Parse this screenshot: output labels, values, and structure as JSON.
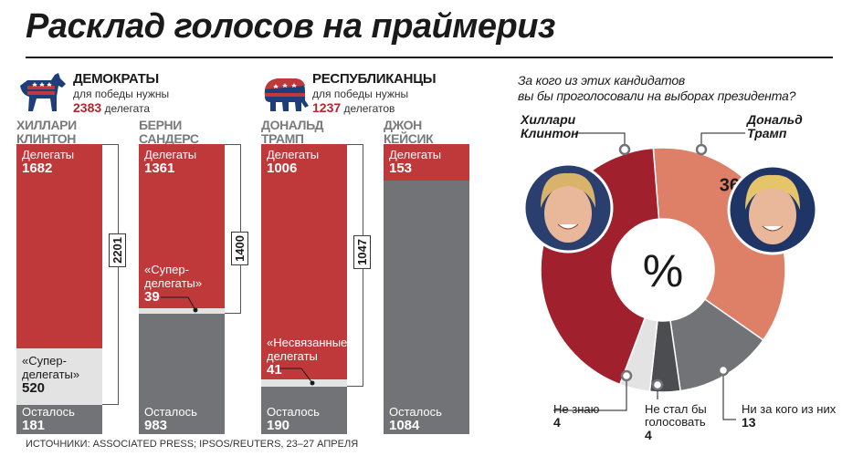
{
  "title": "Расклад голосов на праймериз",
  "colors": {
    "red": "#c0393a",
    "darkred": "#a1202e",
    "salmon": "#de8068",
    "gray": "#727376",
    "lightgray": "#e3e3e3",
    "darkgray": "#4c4d50"
  },
  "dem": {
    "name": "ДЕМОКРАТЫ",
    "sub": "для победы нужны",
    "need": "2383",
    "need_unit": "делегата",
    "icon": "donkey-icon"
  },
  "rep": {
    "name": "РЕСПУБЛИКАНЦЫ",
    "sub": "для победы нужны",
    "need": "1237",
    "need_unit": "делегатов",
    "icon": "elephant-icon"
  },
  "candidates": [
    {
      "name1": "ХИЛЛАРИ",
      "name2": "КЛИНТОН",
      "delegates_label": "Делегаты",
      "delegates": 1682,
      "super_label1": "«Супер-",
      "super_label2": "делегаты»",
      "super": 520,
      "left_label": "Осталось",
      "left": 181,
      "total": "2201"
    },
    {
      "name1": "БЕРНИ",
      "name2": "САНДЕРС",
      "delegates_label": "Делегаты",
      "delegates": 1361,
      "super_label1": "«Супер-",
      "super_label2": "делегаты»",
      "super": 39,
      "left_label": "Осталось",
      "left": 983,
      "total": "1400"
    },
    {
      "name1": "ДОНАЛЬД",
      "name2": "ТРАМП",
      "delegates_label": "Делегаты",
      "delegates": 1006,
      "super_label1": "«Несвязанные»",
      "super_label2": "делегаты",
      "super": 41,
      "left_label": "Осталось",
      "left": 190,
      "total": "1047"
    },
    {
      "name1": "ДЖОН",
      "name2": "КЕЙСИК",
      "delegates_label": "Делегаты",
      "delegates": 153,
      "left_label": "Осталось",
      "left": 1084
    }
  ],
  "poll": {
    "question1": "За кого из этих кандидатов",
    "question2": "вы бы проголосовали на выборах президента?",
    "center_symbol": "%",
    "clinton": {
      "name1": "Хиллари",
      "name2": "Клинтон",
      "value": 43
    },
    "trump": {
      "name1": "Дональд",
      "name2": "Трамп",
      "value": 36
    },
    "dontknow": {
      "label": "Не знаю",
      "value": 4
    },
    "wouldnt": {
      "label1": "Не стал бы",
      "label2": "голосовать",
      "value": 4
    },
    "none": {
      "label": "Ни за кого из них",
      "value": 13
    }
  },
  "chart_data": {
    "type": "pie",
    "categories": [
      "Хиллари Клинтон",
      "Дональд Трамп",
      "Ни за кого из них",
      "Не стал бы голосовать",
      "Не знаю"
    ],
    "values": [
      43,
      36,
      13,
      4,
      4
    ]
  },
  "source": "ИСТОЧНИКИ: ASSOCIATED PRESS; IPSOS/REUTERS, 23–27 АПРЕЛЯ"
}
